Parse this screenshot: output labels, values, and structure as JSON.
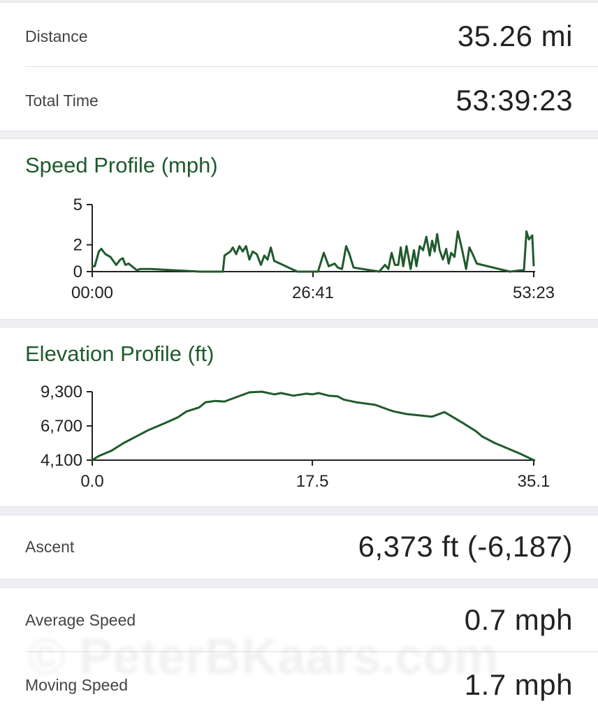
{
  "stats_top": {
    "distance_label": "Distance",
    "distance_value": "35.26 mi",
    "total_time_label": "Total Time",
    "total_time_value": "53:39:23"
  },
  "stats_bottom": {
    "ascent_label": "Ascent",
    "ascent_value": "6,373 ft (-6,187)",
    "avg_speed_label": "Average Speed",
    "avg_speed_value": "0.7 mph",
    "moving_speed_label": "Moving Speed",
    "moving_speed_value": "1.7 mph"
  },
  "watermark": "© PeterBKaars.com",
  "colors": {
    "accent": "#1f5a2c",
    "line": "#1f5a2c",
    "background": "#efeef3",
    "card": "#ffffff"
  },
  "chart_data": [
    {
      "type": "line",
      "title": "Speed Profile (mph)",
      "xlabel": "",
      "ylabel": "",
      "x_ticks": [
        "00:00",
        "26:41",
        "53:23"
      ],
      "y_ticks": [
        "0",
        "2",
        "5"
      ],
      "ylim": [
        0,
        5
      ],
      "xlim_hours": [
        0,
        53.38
      ],
      "series": [
        {
          "x": [
            0,
            0.3,
            0.8,
            1.1,
            1.6,
            2.2,
            2.9,
            3.4,
            3.7,
            4.0,
            4.4,
            5.0,
            5.4,
            5.8,
            6.8,
            7.1,
            13.0,
            15.8,
            16.0,
            16.7,
            17.0,
            17.4,
            17.8,
            18.2,
            18.6,
            19.0,
            19.4,
            19.9,
            20.4,
            20.8,
            21.2,
            21.6,
            22.0,
            24.8,
            27.3,
            28.0,
            28.6,
            29.3,
            29.7,
            30.2,
            30.7,
            31.1,
            31.6,
            34.7,
            35.4,
            35.8,
            36.2,
            36.6,
            37.0,
            37.3,
            37.6,
            38.0,
            38.5,
            38.9,
            39.2,
            39.6,
            40.0,
            40.4,
            40.8,
            41.1,
            41.4,
            41.7,
            42.0,
            42.4,
            42.8,
            43.1,
            43.4,
            43.8,
            44.2,
            44.7,
            45.2,
            45.6,
            46.0,
            46.5,
            50.5,
            51.8,
            52.2,
            52.5,
            52.8,
            53.2,
            53.38
          ],
          "y": [
            0.4,
            0.4,
            1.5,
            1.7,
            1.3,
            1.1,
            0.5,
            0.9,
            1.0,
            0.5,
            0.6,
            0.3,
            0.1,
            0.2,
            0.2,
            0.2,
            0.0,
            0.0,
            1.2,
            1.5,
            1.8,
            1.3,
            1.9,
            1.5,
            1.9,
            0.9,
            1.5,
            1.3,
            0.5,
            1.2,
            0.9,
            1.8,
            0.8,
            0.0,
            0.0,
            1.4,
            0.4,
            0.6,
            0.3,
            0.2,
            1.9,
            1.3,
            0.3,
            0.0,
            0.5,
            0.2,
            1.4,
            0.5,
            0.5,
            1.8,
            0.4,
            1.9,
            0.2,
            1.6,
            0.4,
            1.9,
            1.6,
            2.6,
            1.2,
            2.3,
            1.5,
            2.8,
            1.6,
            0.9,
            1.7,
            0.6,
            1.4,
            1.1,
            3.0,
            1.7,
            0.2,
            1.8,
            1.3,
            0.6,
            0.0,
            0.1,
            0.1,
            3.0,
            2.4,
            2.7,
            0.4
          ]
        }
      ]
    },
    {
      "type": "line",
      "title": "Elevation Profile (ft)",
      "xlabel": "",
      "ylabel": "",
      "x_ticks": [
        "0.0",
        "17.5",
        "35.1"
      ],
      "y_ticks": [
        "4,100",
        "6,700",
        "9,300"
      ],
      "ylim": [
        4100,
        9300
      ],
      "xlim": [
        0,
        35.1
      ],
      "series": [
        {
          "x": [
            0,
            0.5,
            1.5,
            2.5,
            3.5,
            4.5,
            5.5,
            6.0,
            6.8,
            7.5,
            8.5,
            9.0,
            9.8,
            10.5,
            11.5,
            12.5,
            13.5,
            14.5,
            15.0,
            16.0,
            17.0,
            17.5,
            18.0,
            18.8,
            19.5,
            20.0,
            21.0,
            22.5,
            23.5,
            24.0,
            25.0,
            26.0,
            27.0,
            28.0,
            28.8,
            29.5,
            30.5,
            31.0,
            32.0,
            33.0,
            34.0,
            35.1
          ],
          "y": [
            4100,
            4400,
            4800,
            5400,
            5900,
            6400,
            6800,
            7000,
            7350,
            7800,
            8100,
            8500,
            8600,
            8550,
            8900,
            9250,
            9300,
            9100,
            9200,
            9000,
            9150,
            9100,
            9200,
            9000,
            8950,
            8700,
            8500,
            8300,
            7950,
            7800,
            7600,
            7500,
            7400,
            7750,
            7300,
            6900,
            6300,
            5900,
            5400,
            5000,
            4600,
            4100
          ]
        }
      ]
    }
  ]
}
